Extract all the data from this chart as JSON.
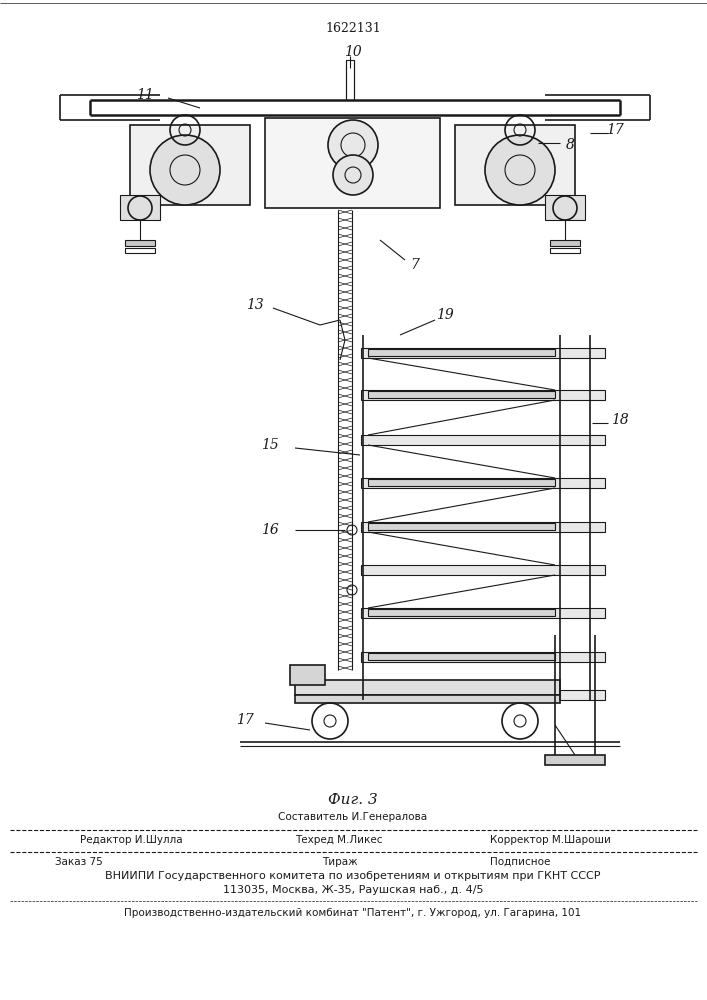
{
  "patent_number": "1622131",
  "figure_label": "Фиг. 3",
  "bg_color": "#ffffff",
  "line_color": "#1a1a1a",
  "footer_line0_center": "Составитель И.Генералова",
  "footer_line1_left": "Редактор И.Шулла",
  "footer_line1_center": "Техред М.Ликес",
  "footer_line1_right": "Корректор М.Шароши",
  "footer_line2_left": "Заказ 75",
  "footer_line2_center": "Тираж",
  "footer_line2_right": "Подписное",
  "footer_line3": "ВНИИПИ Государственного комитета по изобретениям и открытиям при ГКНТ СССР",
  "footer_line4": "113035, Москва, Ж-35, Раушская наб., д. 4/5",
  "footer_line5": "Производственно-издательский комбинат \"Патент\", г. Ужгород, ул. Гагарина, 101"
}
